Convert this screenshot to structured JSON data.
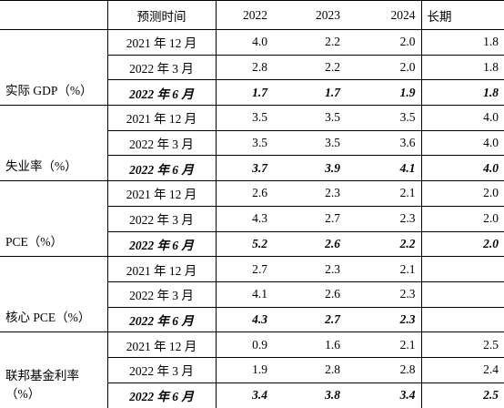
{
  "header": [
    "预测时间",
    "2022",
    "2023",
    "2024",
    "长期"
  ],
  "groups": [
    {
      "label": "实际 GDP（%）",
      "rows": [
        [
          "2021 年 12 月",
          "4.0",
          "2.2",
          "2.0",
          "1.8"
        ],
        [
          "2022 年 3 月",
          "2.8",
          "2.2",
          "2.0",
          "1.8"
        ],
        [
          "2022 年 6 月",
          "1.7",
          "1.7",
          "1.9",
          "1.8"
        ]
      ]
    },
    {
      "label": "失业率（%）",
      "rows": [
        [
          "2021 年 12 月",
          "3.5",
          "3.5",
          "3.5",
          "4.0"
        ],
        [
          "2022 年 3 月",
          "3.5",
          "3.5",
          "3.6",
          "4.0"
        ],
        [
          "2022 年 6 月",
          "3.7",
          "3.9",
          "4.1",
          "4.0"
        ]
      ]
    },
    {
      "label": "PCE（%）",
      "rows": [
        [
          "2021 年 12 月",
          "2.6",
          "2.3",
          "2.1",
          "2.0"
        ],
        [
          "2022 年 3 月",
          "4.3",
          "2.7",
          "2.3",
          "2.0"
        ],
        [
          "2022 年 6 月",
          "5.2",
          "2.6",
          "2.2",
          "2.0"
        ]
      ]
    },
    {
      "label": "核心 PCE（%）",
      "rows": [
        [
          "2021 年 12 月",
          "2.7",
          "2.3",
          "2.1",
          null
        ],
        [
          "2022 年 3 月",
          "4.1",
          "2.6",
          "2.3",
          null
        ],
        [
          "2022 年 6 月",
          "4.3",
          "2.7",
          "2.3",
          null
        ]
      ]
    },
    {
      "label": "联邦基金利率（%）",
      "rows": [
        [
          "2021 年 12 月",
          "0.9",
          "1.6",
          "2.1",
          "2.5"
        ],
        [
          "2022 年 3 月",
          "1.9",
          "2.8",
          "2.8",
          "2.4"
        ],
        [
          "2022 年 6 月",
          "3.4",
          "3.8",
          "3.4",
          "2.5"
        ]
      ]
    }
  ]
}
